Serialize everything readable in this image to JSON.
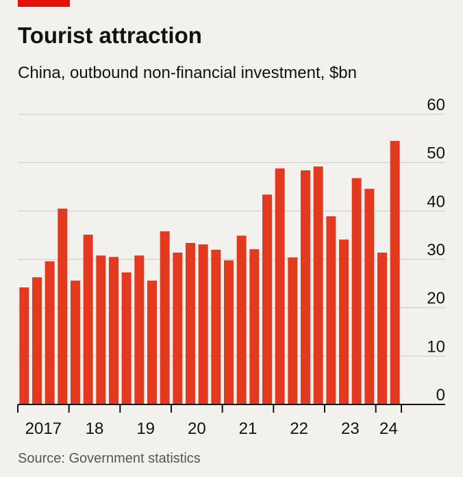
{
  "title": "Tourist attraction",
  "source": "Source: Government statistics",
  "chart_data": {
    "type": "bar",
    "subtitle": "China, outbound non-financial investment, $bn",
    "categories": [
      "2017",
      null,
      null,
      null,
      "18",
      null,
      null,
      null,
      "19",
      null,
      null,
      null,
      "20",
      null,
      null,
      null,
      "21",
      null,
      null,
      null,
      "22",
      null,
      null,
      null,
      "23",
      null,
      null,
      null,
      "24",
      null
    ],
    "values": [
      24.2,
      26.3,
      29.6,
      40.5,
      25.6,
      35.1,
      30.8,
      30.5,
      27.3,
      30.8,
      25.6,
      35.8,
      31.4,
      33.4,
      33.1,
      32.0,
      29.8,
      34.9,
      32.1,
      43.4,
      48.8,
      30.4,
      48.4,
      49.2,
      38.9,
      34.1,
      46.8,
      44.6,
      31.4,
      54.5
    ],
    "color": "#e3391f",
    "ylim": [
      0,
      60
    ],
    "yticks": [
      0,
      10,
      20,
      30,
      40,
      50,
      60
    ],
    "grid": true
  }
}
